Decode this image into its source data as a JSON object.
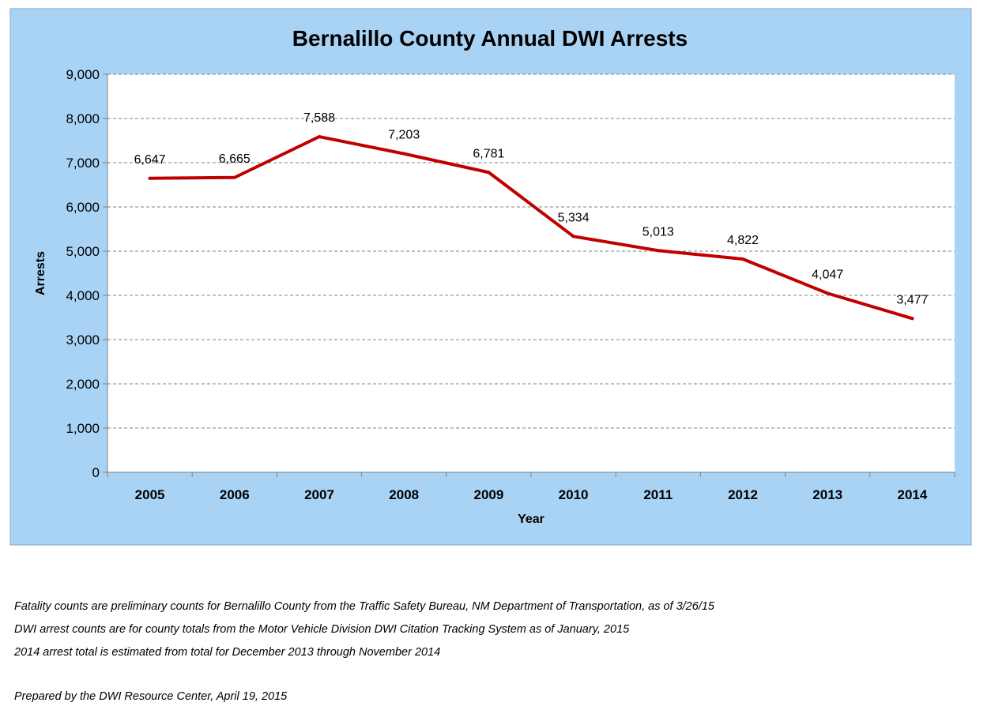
{
  "chart_data": {
    "type": "line",
    "title": "Bernalillo County Annual DWI Arrests",
    "xlabel": "Year",
    "ylabel": "Arrests",
    "x": [
      "2005",
      "2006",
      "2007",
      "2008",
      "2009",
      "2010",
      "2011",
      "2012",
      "2013",
      "2014"
    ],
    "series": [
      {
        "values": [
          6647,
          6665,
          7588,
          7203,
          6781,
          5334,
          5013,
          4822,
          4047,
          3477
        ],
        "labels": [
          "6,647",
          "6,665",
          "7,588",
          "7,203",
          "6,781",
          "5,334",
          "5,013",
          "4,822",
          "4,047",
          "3,477"
        ],
        "color": "#c00000"
      }
    ],
    "ylim": [
      0,
      9000
    ],
    "yticks": [
      0,
      1000,
      2000,
      3000,
      4000,
      5000,
      6000,
      7000,
      8000,
      9000
    ],
    "ytick_labels": [
      "0",
      "1,000",
      "2,000",
      "3,000",
      "4,000",
      "5,000",
      "6,000",
      "7,000",
      "8,000",
      "9,000"
    ],
    "grid": true,
    "legend": "none",
    "colors": {
      "background": "#a9d3f5",
      "plot_area": "#ffffff",
      "gridline": "#808080"
    }
  },
  "notes": {
    "line1": "Fatality counts are preliminary counts for Bernalillo County from the Traffic Safety Bureau, NM Department of Transportation, as of 3/26/15",
    "line2": "DWI arrest counts are for county totals from the Motor Vehicle Division DWI Citation Tracking System as of January, 2015",
    "line3": "2014 arrest total is estimated from total for December 2013 through November 2014",
    "prepared_by": "Prepared by the DWI Resource Center, April 19, 2015"
  }
}
